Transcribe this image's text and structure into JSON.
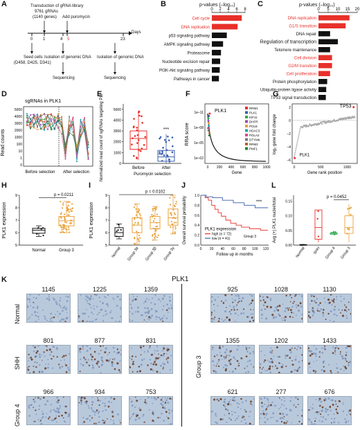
{
  "panels": {
    "A": "A",
    "B": "B",
    "C": "C",
    "D": "D",
    "E": "E",
    "F": "F",
    "G": "G",
    "H": "H",
    "I": "I",
    "J": "J",
    "K": "K",
    "L": "L"
  },
  "panelA": {
    "transduction": "Transduction of gRNA library",
    "grna_count": "9761 gRNAs",
    "genes": "(1140 genes)",
    "add_puro": "Add puromycin",
    "days": "Days",
    "ticks": [
      "0",
      "1",
      "4",
      "5",
      "23"
    ],
    "seed": "Seed cells",
    "cells": "(D458, D425, D341)",
    "isolation1": "Isolation of genomic DNA",
    "seq1": "Sequencing",
    "isolation2": "Isolation of genomic DNA",
    "seq2": "Sequencing"
  },
  "panelB": {
    "axis_title": "p-values (–log₁₀)",
    "ticks": [
      "0",
      "2",
      "4",
      "6",
      "8"
    ],
    "terms": [
      "Cell cycle",
      "DNA replication",
      "p53 signaling pathway",
      "AMPK signaling pathway",
      "Proteasome",
      "Nucleotide excision repair",
      "PI3K-Akt signaling pathway",
      "Pathways in cancer"
    ]
  },
  "panelC": {
    "axis_title": "p-values (–log₁₀)",
    "ticks": [
      "0",
      "5",
      "10",
      "15",
      "20"
    ],
    "terms": [
      "DNA replication",
      "G1/S transition",
      "DNA repair",
      "Regulation of transcription",
      "Telomere maintenance",
      "Cell division",
      "G2/M transition",
      "Cell proliferation",
      "Protein phosphorylation",
      "Ubiquitin-protein ligase activity",
      "TP53 signal transduction"
    ]
  },
  "panelD": {
    "title": "sgRNAs in PLK1",
    "ylabel": "Read counts",
    "yticks": [
      "5000",
      "4000",
      "3000",
      "2000",
      "1000",
      "100",
      "10",
      "1",
      "0"
    ],
    "before": "Before selection",
    "after": "After selection"
  },
  "panelE": {
    "ylabel": "Normalized read count of sgRNAs targeting PLK1",
    "yticks": [
      "0",
      "1000",
      "2000",
      "3000",
      "4000",
      "5000"
    ],
    "cats": [
      "Before",
      "After"
    ],
    "stars": "***",
    "xlabel": "Puromycin selection"
  },
  "panelF": {
    "ylabel": "RRA score",
    "yticks": [
      "1e–11",
      "1e–08",
      "1e–05",
      "1e–02"
    ],
    "xticks": [
      "0",
      "200",
      "400",
      "600",
      "800",
      "1000"
    ],
    "xlabel": "Gene",
    "plk1": "PLK1",
    "legend": [
      "RRM1",
      "PLK1",
      "KIF11",
      "DHFR",
      "POLE",
      "HDAC3",
      "POLA2",
      "DTYMK",
      "RRM2",
      "PMF1"
    ]
  },
  "panelG": {
    "ylabel": "log₂ gene fold change",
    "yticks": [
      "2",
      "0",
      "–2",
      "–4",
      "–6"
    ],
    "xticks": [
      "0",
      "500",
      "1000"
    ],
    "xlabel": "Gene rank position",
    "tp53": "TP53",
    "plk1": "PLK1"
  },
  "panelH": {
    "ylabel": "PLK1 expression",
    "yticks": [
      "5",
      "6",
      "7",
      "8",
      "9"
    ],
    "cats": [
      "Normal",
      "Group 3"
    ],
    "pval": "p = 0.0211"
  },
  "panelI": {
    "ylabel": "PLK1 expression",
    "yticks": [
      "5",
      "6",
      "7",
      "8",
      "9"
    ],
    "cats": [
      "Normal",
      "Group 3α",
      "Group 3β",
      "Group 3γ"
    ],
    "pval": "p = 0.0102"
  },
  "panelJ": {
    "ylabel": "Overall survival probability",
    "yticks": [
      "0.0",
      "0.2",
      "0.4",
      "0.6",
      "0.8",
      "1.0"
    ],
    "xticks": [
      "0",
      "20",
      "40",
      "60",
      "80",
      "100",
      "120"
    ],
    "xlabel": "Follow up in months",
    "stars": "***",
    "legend_title": "PLK1 expression",
    "high": "high (n = 72)",
    "low": "low (n = 41)",
    "group": "Group 3"
  },
  "panelL": {
    "ylabel": "Avg (+) PLK1 nuclei/total",
    "yticks": [
      "0.00",
      "0.05",
      "0.10",
      "0.15"
    ],
    "cats": [
      "Normal",
      "SHH",
      "Group 4",
      "Group 3"
    ],
    "pval": "p = 0.0452"
  },
  "panelK": {
    "title": "PLK1",
    "rows_left": [
      "Normal",
      "SHH",
      "Group 4"
    ],
    "row_right": "Group 3",
    "left_counts": [
      [
        "1145",
        "1225",
        "1359"
      ],
      [
        "801",
        "877",
        "831"
      ],
      [
        "966",
        "934",
        "753"
      ]
    ],
    "right_counts": [
      [
        "925",
        "1028",
        "1130"
      ],
      [
        "1355",
        "1202",
        "1433"
      ],
      [
        "621",
        "277",
        "676"
      ]
    ]
  },
  "colors": {
    "red": "#e8302a",
    "blue": "#3b5fad",
    "orange": "#e9a13b",
    "green": "#33a852",
    "gray": "#8c8c8c"
  }
}
